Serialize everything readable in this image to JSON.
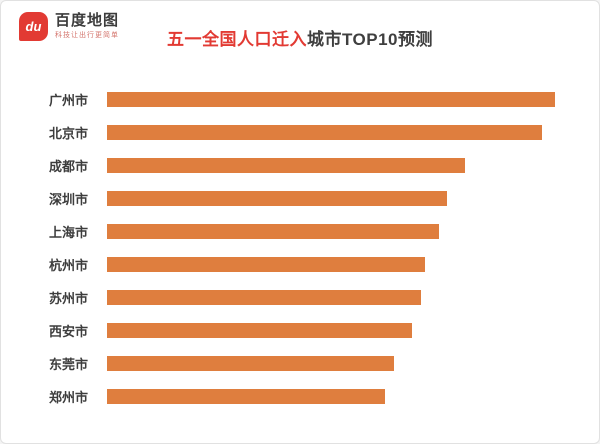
{
  "logo": {
    "title": "百度地图",
    "subtitle": "科技让出行更简单",
    "pin_text": "du"
  },
  "title": {
    "part1": "五一全国人口",
    "part2": "迁入",
    "part3": "城市TOP10预测"
  },
  "colors": {
    "accent_red": "#e23a33",
    "title_dark": "#3f3f3f",
    "bar_orange": "#df7e3e"
  },
  "chart_data": {
    "type": "bar",
    "orientation": "horizontal",
    "title": "五一全国人口迁入城市TOP10预测",
    "categories": [
      "广州市",
      "北京市",
      "成都市",
      "深圳市",
      "上海市",
      "杭州市",
      "苏州市",
      "西安市",
      "东莞市",
      "郑州市"
    ],
    "values": [
      100,
      97,
      80,
      76,
      74,
      71,
      70,
      68,
      64,
      62
    ],
    "value_note": "relative bar lengths, no numeric axis shown in image",
    "xlabel": "",
    "ylabel": "",
    "xlim": [
      0,
      100
    ],
    "grid": false,
    "legend": false,
    "bar_color": "#df7e3e"
  }
}
